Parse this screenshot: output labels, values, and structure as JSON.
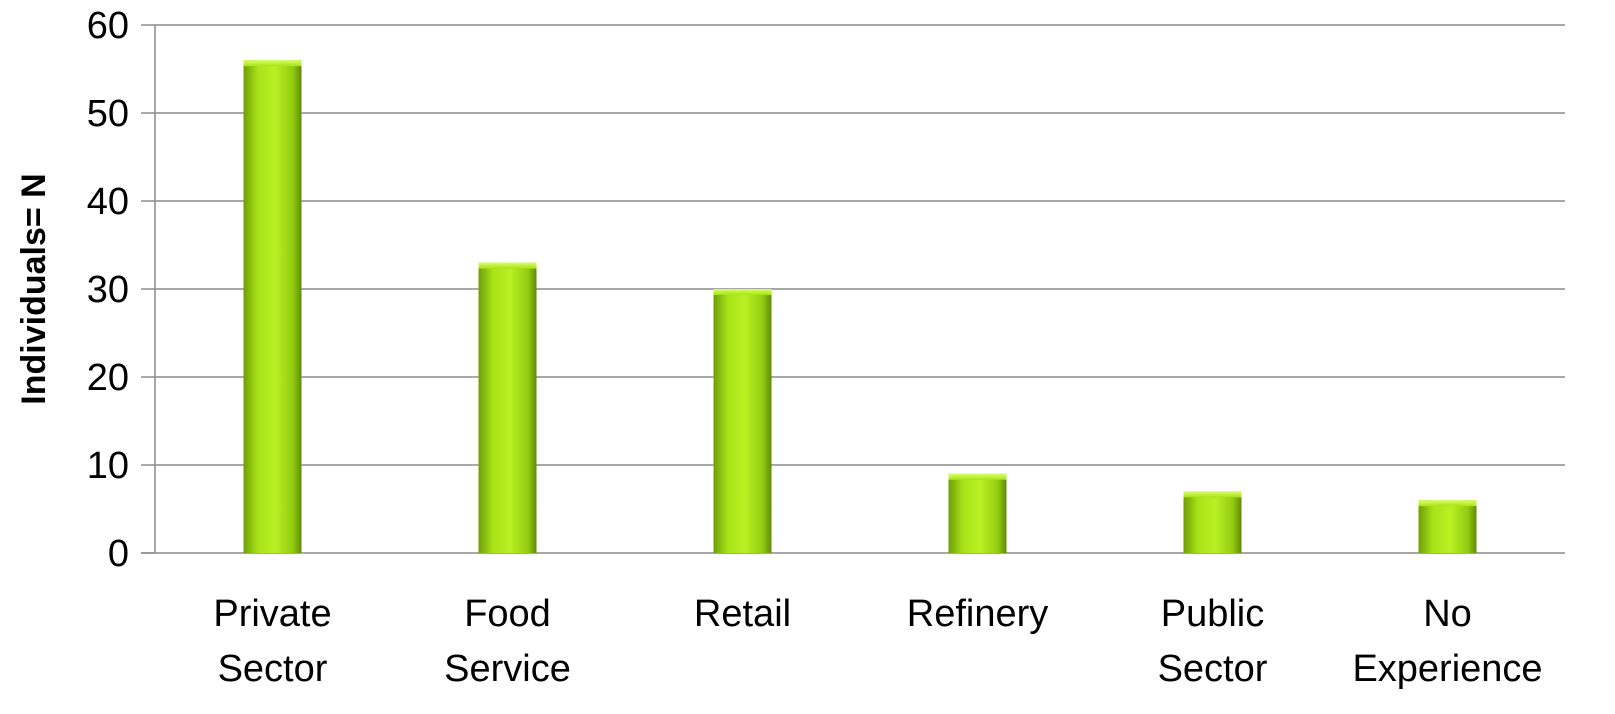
{
  "chart_data": {
    "type": "bar",
    "title": "",
    "xlabel": "",
    "ylabel": "Individuals= N",
    "ylim": [
      0,
      60
    ],
    "yticks": [
      0,
      10,
      20,
      30,
      40,
      50,
      60
    ],
    "grid": true,
    "legend": "none",
    "categories": [
      [
        "Private",
        "Sector"
      ],
      [
        "Food",
        "Service"
      ],
      [
        "Retail"
      ],
      [
        "Refinery"
      ],
      [
        "Public",
        "Sector"
      ],
      [
        "No",
        "Experience"
      ]
    ],
    "values": [
      56,
      33,
      30,
      9,
      7,
      6
    ],
    "colors": {
      "bar_light": "#b5f01e",
      "bar_mid": "#9bd40f",
      "bar_dark": "#5f8a08",
      "grid": "#8c8c8c"
    }
  }
}
